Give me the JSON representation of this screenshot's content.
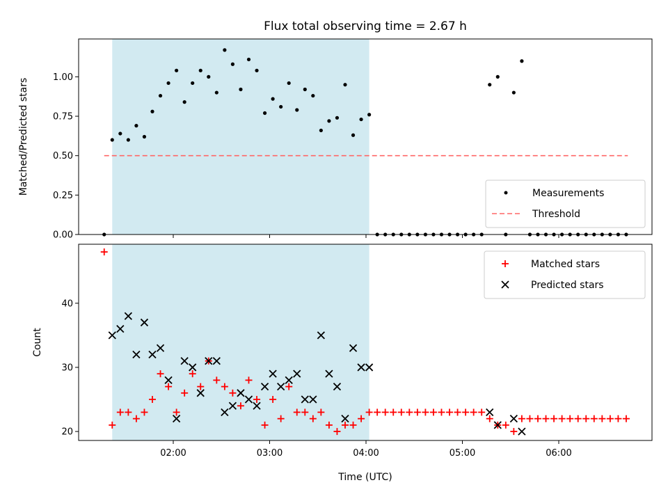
{
  "chart_data": [
    {
      "type": "scatter",
      "title": "Flux total observing time = 2.67 h",
      "ylabel": "Matched/Predicted stars",
      "xlabel": "",
      "x_unit": "time (UTC)",
      "xlim": [
        "01:00",
        "07:00"
      ],
      "ylim": [
        0,
        1.24
      ],
      "y_ticks": [
        "0.00",
        "0.25",
        "0.50",
        "0.75",
        "1.00"
      ],
      "grid": false,
      "legend_position": "lower-right",
      "shaded_interval": {
        "start": "01:22",
        "end": "04:02",
        "color": "#add8e6"
      },
      "threshold": {
        "name": "Threshold",
        "value": 0.5,
        "x_start": "01:17",
        "x_end": "06:43",
        "color": "#ff6666",
        "style": "dashed"
      },
      "series": [
        {
          "name": "Measurements",
          "marker": "dot",
          "color": "#000000",
          "points": [
            [
              "01:17",
              0.0
            ],
            [
              "01:22",
              0.6
            ],
            [
              "01:27",
              0.64
            ],
            [
              "01:32",
              0.6
            ],
            [
              "01:37",
              0.69
            ],
            [
              "01:42",
              0.62
            ],
            [
              "01:47",
              0.78
            ],
            [
              "01:52",
              0.88
            ],
            [
              "01:57",
              0.96
            ],
            [
              "02:02",
              1.04
            ],
            [
              "02:07",
              0.84
            ],
            [
              "02:12",
              0.96
            ],
            [
              "02:17",
              1.04
            ],
            [
              "02:22",
              1.0
            ],
            [
              "02:27",
              0.9
            ],
            [
              "02:32",
              1.17
            ],
            [
              "02:37",
              1.08
            ],
            [
              "02:42",
              0.92
            ],
            [
              "02:47",
              1.11
            ],
            [
              "02:52",
              1.04
            ],
            [
              "02:57",
              0.77
            ],
            [
              "03:02",
              0.86
            ],
            [
              "03:07",
              0.81
            ],
            [
              "03:12",
              0.96
            ],
            [
              "03:17",
              0.79
            ],
            [
              "03:22",
              0.92
            ],
            [
              "03:27",
              0.88
            ],
            [
              "03:32",
              0.66
            ],
            [
              "03:37",
              0.72
            ],
            [
              "03:42",
              0.74
            ],
            [
              "03:47",
              0.95
            ],
            [
              "03:52",
              0.63
            ],
            [
              "03:57",
              0.73
            ],
            [
              "04:02",
              0.76
            ],
            [
              "04:07",
              0.0
            ],
            [
              "04:12",
              0.0
            ],
            [
              "04:17",
              0.0
            ],
            [
              "04:22",
              0.0
            ],
            [
              "04:27",
              0.0
            ],
            [
              "04:32",
              0.0
            ],
            [
              "04:37",
              0.0
            ],
            [
              "04:42",
              0.0
            ],
            [
              "04:47",
              0.0
            ],
            [
              "04:52",
              0.0
            ],
            [
              "04:57",
              0.0
            ],
            [
              "05:02",
              0.0
            ],
            [
              "05:07",
              0.0
            ],
            [
              "05:12",
              0.0
            ],
            [
              "05:17",
              0.95
            ],
            [
              "05:22",
              1.0
            ],
            [
              "05:27",
              0.0
            ],
            [
              "05:32",
              0.9
            ],
            [
              "05:37",
              1.1
            ],
            [
              "05:42",
              0.0
            ],
            [
              "05:47",
              0.0
            ],
            [
              "05:52",
              0.0
            ],
            [
              "05:57",
              0.0
            ],
            [
              "06:02",
              0.0
            ],
            [
              "06:07",
              0.0
            ],
            [
              "06:12",
              0.0
            ],
            [
              "06:17",
              0.0
            ],
            [
              "06:22",
              0.0
            ],
            [
              "06:27",
              0.0
            ],
            [
              "06:32",
              0.0
            ],
            [
              "06:37",
              0.0
            ],
            [
              "06:42",
              0.0
            ]
          ]
        }
      ]
    },
    {
      "type": "scatter",
      "title": "",
      "ylabel": "Count",
      "xlabel": "Time (UTC)",
      "xlim": [
        "01:00",
        "07:00"
      ],
      "ylim": [
        18.6,
        49.2
      ],
      "x_ticks": [
        "02:00",
        "03:00",
        "04:00",
        "05:00",
        "06:00"
      ],
      "y_ticks": [
        "20",
        "30",
        "40"
      ],
      "grid": false,
      "legend_position": "upper-right",
      "shaded_interval": {
        "start": "01:22",
        "end": "04:02",
        "color": "#add8e6"
      },
      "series": [
        {
          "name": "Matched stars",
          "marker": "plus",
          "color": "#ff0000",
          "points": [
            [
              "01:17",
              48
            ],
            [
              "01:22",
              21
            ],
            [
              "01:27",
              23
            ],
            [
              "01:32",
              23
            ],
            [
              "01:37",
              22
            ],
            [
              "01:42",
              23
            ],
            [
              "01:47",
              25
            ],
            [
              "01:52",
              29
            ],
            [
              "01:57",
              27
            ],
            [
              "02:02",
              23
            ],
            [
              "02:07",
              26
            ],
            [
              "02:12",
              29
            ],
            [
              "02:17",
              27
            ],
            [
              "02:22",
              31
            ],
            [
              "02:27",
              28
            ],
            [
              "02:32",
              27
            ],
            [
              "02:37",
              26
            ],
            [
              "02:42",
              24
            ],
            [
              "02:47",
              28
            ],
            [
              "02:52",
              25
            ],
            [
              "02:57",
              21
            ],
            [
              "03:02",
              25
            ],
            [
              "03:07",
              22
            ],
            [
              "03:12",
              27
            ],
            [
              "03:17",
              23
            ],
            [
              "03:22",
              23
            ],
            [
              "03:27",
              22
            ],
            [
              "03:32",
              23
            ],
            [
              "03:37",
              21
            ],
            [
              "03:42",
              20
            ],
            [
              "03:47",
              21
            ],
            [
              "03:52",
              21
            ],
            [
              "03:57",
              22
            ],
            [
              "04:02",
              23
            ],
            [
              "04:07",
              23
            ],
            [
              "04:12",
              23
            ],
            [
              "04:17",
              23
            ],
            [
              "04:22",
              23
            ],
            [
              "04:27",
              23
            ],
            [
              "04:32",
              23
            ],
            [
              "04:37",
              23
            ],
            [
              "04:42",
              23
            ],
            [
              "04:47",
              23
            ],
            [
              "04:52",
              23
            ],
            [
              "04:57",
              23
            ],
            [
              "05:02",
              23
            ],
            [
              "05:07",
              23
            ],
            [
              "05:12",
              23
            ],
            [
              "05:17",
              22
            ],
            [
              "05:22",
              21
            ],
            [
              "05:27",
              21
            ],
            [
              "05:32",
              20
            ],
            [
              "05:37",
              22
            ],
            [
              "05:42",
              22
            ],
            [
              "05:47",
              22
            ],
            [
              "05:52",
              22
            ],
            [
              "05:57",
              22
            ],
            [
              "06:02",
              22
            ],
            [
              "06:07",
              22
            ],
            [
              "06:12",
              22
            ],
            [
              "06:17",
              22
            ],
            [
              "06:22",
              22
            ],
            [
              "06:27",
              22
            ],
            [
              "06:32",
              22
            ],
            [
              "06:37",
              22
            ],
            [
              "06:42",
              22
            ]
          ]
        },
        {
          "name": "Predicted stars",
          "marker": "x",
          "color": "#000000",
          "points": [
            [
              "01:22",
              35
            ],
            [
              "01:27",
              36
            ],
            [
              "01:32",
              38
            ],
            [
              "01:37",
              32
            ],
            [
              "01:42",
              37
            ],
            [
              "01:47",
              32
            ],
            [
              "01:52",
              33
            ],
            [
              "01:57",
              28
            ],
            [
              "02:02",
              22
            ],
            [
              "02:07",
              31
            ],
            [
              "02:12",
              30
            ],
            [
              "02:17",
              26
            ],
            [
              "02:22",
              31
            ],
            [
              "02:27",
              31
            ],
            [
              "02:32",
              23
            ],
            [
              "02:37",
              24
            ],
            [
              "02:42",
              26
            ],
            [
              "02:47",
              25
            ],
            [
              "02:52",
              24
            ],
            [
              "02:57",
              27
            ],
            [
              "03:02",
              29
            ],
            [
              "03:07",
              27
            ],
            [
              "03:12",
              28
            ],
            [
              "03:17",
              29
            ],
            [
              "03:22",
              25
            ],
            [
              "03:27",
              25
            ],
            [
              "03:32",
              35
            ],
            [
              "03:37",
              29
            ],
            [
              "03:42",
              27
            ],
            [
              "03:47",
              22
            ],
            [
              "03:52",
              33
            ],
            [
              "03:57",
              30
            ],
            [
              "04:02",
              30
            ],
            [
              "05:17",
              23
            ],
            [
              "05:22",
              21
            ],
            [
              "05:32",
              22
            ],
            [
              "05:37",
              20
            ]
          ]
        }
      ]
    }
  ]
}
